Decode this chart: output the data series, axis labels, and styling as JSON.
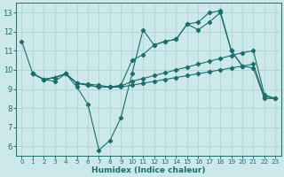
{
  "xlabel": "Humidex (Indice chaleur)",
  "xlim": [
    -0.5,
    23.5
  ],
  "ylim": [
    5.5,
    13.5
  ],
  "yticks": [
    6,
    7,
    8,
    9,
    10,
    11,
    12,
    13
  ],
  "xticks": [
    0,
    1,
    2,
    3,
    4,
    5,
    6,
    7,
    8,
    9,
    10,
    11,
    12,
    13,
    14,
    15,
    16,
    17,
    18,
    19,
    20,
    21,
    22,
    23
  ],
  "bg_color": "#cce8e8",
  "grid_color": "#b0d8d8",
  "line_color": "#1a6e6e",
  "line1_x": [
    0,
    1,
    2,
    3,
    4,
    5,
    6,
    7,
    8,
    9,
    10,
    11,
    12,
    13,
    14,
    15,
    16,
    17,
    18,
    19,
    20
  ],
  "line1_y": [
    11.5,
    9.8,
    9.5,
    9.4,
    9.8,
    9.1,
    8.2,
    5.8,
    6.3,
    7.5,
    9.8,
    12.1,
    11.3,
    11.5,
    11.6,
    12.4,
    12.5,
    13.0,
    13.1,
    11.0,
    10.2
  ],
  "line2_x": [
    1,
    2,
    3,
    4,
    5,
    6,
    7,
    8,
    9,
    10,
    11,
    12,
    13,
    14,
    15,
    16,
    17,
    18,
    19,
    20,
    21,
    22,
    23
  ],
  "line2_y": [
    9.8,
    9.5,
    9.6,
    9.8,
    9.3,
    9.2,
    9.1,
    9.1,
    9.2,
    10.5,
    10.8,
    11.3,
    11.5,
    11.6,
    12.4,
    12.1,
    12.5,
    13.0,
    11.0,
    10.2,
    10.1,
    8.5,
    8.5
  ],
  "line3_x": [
    1,
    2,
    3,
    4,
    5,
    6,
    7,
    8,
    9,
    10,
    11,
    12,
    13,
    14,
    15,
    16,
    17,
    18,
    19,
    20,
    21,
    22,
    23
  ],
  "line3_y": [
    9.8,
    9.5,
    9.6,
    9.8,
    9.3,
    9.25,
    9.2,
    9.1,
    9.15,
    9.4,
    9.55,
    9.7,
    9.85,
    10.0,
    10.15,
    10.3,
    10.45,
    10.6,
    10.75,
    10.9,
    11.0,
    8.7,
    8.5
  ],
  "line4_x": [
    1,
    2,
    3,
    4,
    5,
    6,
    7,
    8,
    9,
    10,
    11,
    12,
    13,
    14,
    15,
    16,
    17,
    18,
    19,
    20,
    21,
    22,
    23
  ],
  "line4_y": [
    9.8,
    9.5,
    9.6,
    9.8,
    9.3,
    9.2,
    9.1,
    9.1,
    9.1,
    9.2,
    9.3,
    9.4,
    9.5,
    9.6,
    9.7,
    9.8,
    9.9,
    10.0,
    10.1,
    10.2,
    10.3,
    8.6,
    8.5
  ]
}
